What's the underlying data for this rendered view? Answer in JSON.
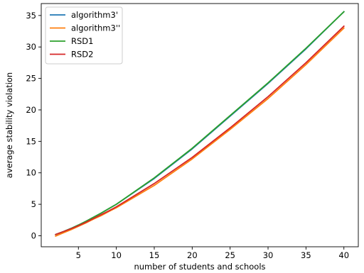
{
  "chart_data": {
    "type": "line",
    "xlabel": "number of students and schools",
    "ylabel": "average stability violation",
    "xlim": [
      0.1,
      41.9
    ],
    "ylim": [
      -1.75,
      36.9
    ],
    "xticks": [
      5,
      10,
      15,
      20,
      25,
      30,
      35,
      40
    ],
    "yticks": [
      0,
      5,
      10,
      15,
      20,
      25,
      30,
      35
    ],
    "x": [
      2,
      3,
      4,
      5,
      6,
      7,
      8,
      9,
      10,
      15,
      20,
      25,
      30,
      35,
      40
    ],
    "grid": false,
    "legend_position": "top-left",
    "series": [
      {
        "name": "algorithm3'",
        "color": "#1f77b4",
        "values": [
          0.2,
          0.65,
          1.15,
          1.7,
          2.3,
          2.95,
          3.6,
          4.3,
          5.0,
          9.1,
          13.8,
          19.0,
          24.2,
          29.7,
          35.6
        ]
      },
      {
        "name": "algorithm3''",
        "color": "#ff7f0e",
        "values": [
          -0.05,
          0.45,
          0.95,
          1.5,
          2.05,
          2.65,
          3.2,
          3.85,
          4.45,
          8.0,
          12.2,
          16.9,
          21.8,
          27.2,
          33.0
        ]
      },
      {
        "name": "RSD1",
        "color": "#2ca02c",
        "values": [
          0.2,
          0.65,
          1.15,
          1.7,
          2.3,
          2.95,
          3.6,
          4.3,
          5.0,
          9.2,
          13.9,
          19.1,
          24.3,
          29.8,
          35.6
        ]
      },
      {
        "name": "RSD2",
        "color": "#d62728",
        "values": [
          0.2,
          0.65,
          1.1,
          1.6,
          2.15,
          2.75,
          3.35,
          3.95,
          4.6,
          8.3,
          12.45,
          17.15,
          22.1,
          27.5,
          33.3
        ]
      }
    ]
  }
}
